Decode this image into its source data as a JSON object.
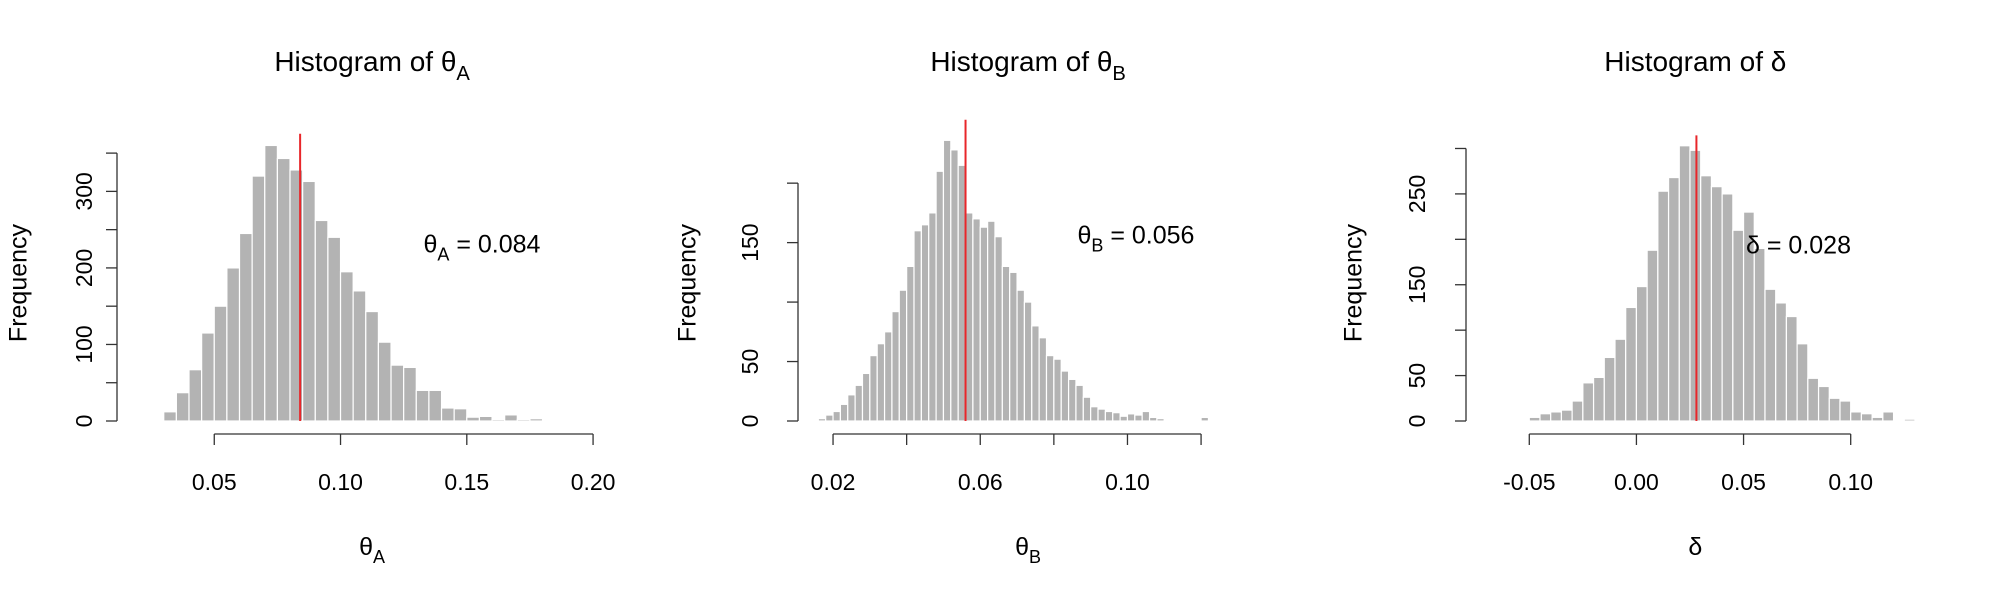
{
  "chart_data": [
    {
      "type": "histogram",
      "title": {
        "text": "Histogram of θ",
        "sub": "A"
      },
      "xlabel": {
        "text": "θ",
        "sub": "A"
      },
      "ylabel": "Frequency",
      "bins": [
        0.025,
        0.03,
        0.035,
        0.04,
        0.045,
        0.05,
        0.055,
        0.06,
        0.065,
        0.07,
        0.075,
        0.08,
        0.085,
        0.09,
        0.095,
        0.1,
        0.105,
        0.11,
        0.115,
        0.12,
        0.125,
        0.13,
        0.135,
        0.14,
        0.145,
        0.15,
        0.155,
        0.16,
        0.165,
        0.17,
        0.175,
        0.18,
        0.185,
        0.19,
        0.195,
        0.2
      ],
      "values": [
        1,
        12,
        37,
        67,
        115,
        150,
        200,
        245,
        320,
        360,
        343,
        328,
        313,
        262,
        240,
        195,
        170,
        143,
        103,
        73,
        70,
        40,
        40,
        17,
        16,
        5,
        6,
        2,
        8,
        2,
        3,
        0,
        0,
        1,
        1
      ],
      "xlim": [
        0.02,
        0.205
      ],
      "ylim": [
        0,
        370
      ],
      "xticks": [
        0.05,
        {
          "value": 0.1,
          "label": "0.10"
        },
        0.15,
        {
          "value": 0.2,
          "label": "0.20"
        }
      ],
      "yticks": [
        0,
        100,
        200,
        300
      ],
      "yminor_ticks": [
        50,
        150,
        250,
        350
      ],
      "vline": 0.084,
      "annotation": {
        "text": "θ",
        "sub": "A",
        "rest": " = 0.084"
      },
      "color": "#b3b3b3",
      "vline_color": "#e8262a"
    },
    {
      "type": "histogram",
      "title": {
        "text": "Histogram of θ",
        "sub": "B"
      },
      "xlabel": {
        "text": "θ",
        "sub": "B"
      },
      "ylabel": "Frequency",
      "bins": [
        0.016,
        0.018,
        0.02,
        0.022,
        0.024,
        0.026,
        0.028,
        0.03,
        0.032,
        0.034,
        0.036,
        0.038,
        0.04,
        0.042,
        0.044,
        0.046,
        0.048,
        0.05,
        0.052,
        0.054,
        0.056,
        0.058,
        0.06,
        0.062,
        0.064,
        0.066,
        0.068,
        0.07,
        0.072,
        0.074,
        0.076,
        0.078,
        0.08,
        0.082,
        0.084,
        0.086,
        0.088,
        0.09,
        0.092,
        0.094,
        0.096,
        0.098,
        0.1,
        0.102,
        0.104,
        0.106,
        0.108,
        0.11,
        0.112,
        0.114,
        0.116,
        0.118,
        0.12,
        0.122,
        0.124,
        0.126,
        0.128,
        0.13,
        0.132
      ],
      "values": [
        2,
        5,
        8,
        14,
        22,
        30,
        40,
        55,
        65,
        75,
        92,
        110,
        130,
        160,
        165,
        175,
        210,
        236,
        228,
        215,
        175,
        170,
        163,
        168,
        155,
        130,
        125,
        110,
        100,
        80,
        70,
        55,
        52,
        42,
        35,
        30,
        20,
        12,
        10,
        8,
        7,
        4,
        6,
        5,
        8,
        3,
        2,
        1,
        1,
        0,
        1,
        0,
        3,
        0,
        0,
        0,
        1,
        1
      ],
      "xlim": [
        0.012,
        0.134
      ],
      "ylim": [
        0,
        250
      ],
      "xticks": [
        0.02,
        0.06,
        {
          "value": 0.1,
          "label": "0.10"
        }
      ],
      "xminor_ticks": [
        0.04,
        0.08,
        0.12
      ],
      "yticks": [
        0,
        50,
        150
      ],
      "yminor_ticks": [
        100,
        200
      ],
      "vline": 0.056,
      "annotation": {
        "text": "θ",
        "sub": "B",
        "rest": " = 0.056"
      },
      "color": "#b3b3b3",
      "vline_color": "#e8262a"
    },
    {
      "type": "histogram",
      "title": {
        "text": "Histogram of δ"
      },
      "xlabel": {
        "text": "δ"
      },
      "ylabel": "Frequency",
      "bins": [
        -0.075,
        -0.07,
        -0.065,
        -0.06,
        -0.055,
        -0.05,
        -0.045,
        -0.04,
        -0.035,
        -0.03,
        -0.025,
        -0.02,
        -0.015,
        -0.01,
        -0.005,
        0,
        0.005,
        0.01,
        0.015,
        0.02,
        0.025,
        0.03,
        0.035,
        0.04,
        0.045,
        0.05,
        0.055,
        0.06,
        0.065,
        0.07,
        0.075,
        0.08,
        0.085,
        0.09,
        0.095,
        0.1,
        0.105,
        0.11,
        0.115,
        0.12,
        0.125,
        0.13
      ],
      "values": [
        1,
        0,
        0,
        0,
        1,
        4,
        8,
        10,
        12,
        22,
        42,
        48,
        70,
        90,
        125,
        148,
        188,
        253,
        268,
        303,
        298,
        270,
        258,
        250,
        210,
        230,
        190,
        145,
        130,
        115,
        85,
        47,
        38,
        25,
        22,
        10,
        8,
        4,
        10,
        0,
        2
      ],
      "xlim": [
        -0.08,
        0.135
      ],
      "ylim": [
        0,
        310
      ],
      "xticks": [
        -0.05,
        {
          "value": 0,
          "label": "0.00"
        },
        0.05,
        {
          "value": 0.1,
          "label": "0.10"
        }
      ],
      "yticks": [
        0,
        50,
        150,
        250
      ],
      "yminor_ticks": [
        100,
        200,
        300
      ],
      "vline": 0.028,
      "annotation": {
        "text": "δ = 0.028"
      },
      "color": "#b3b3b3",
      "vline_color": "#e8262a"
    }
  ]
}
